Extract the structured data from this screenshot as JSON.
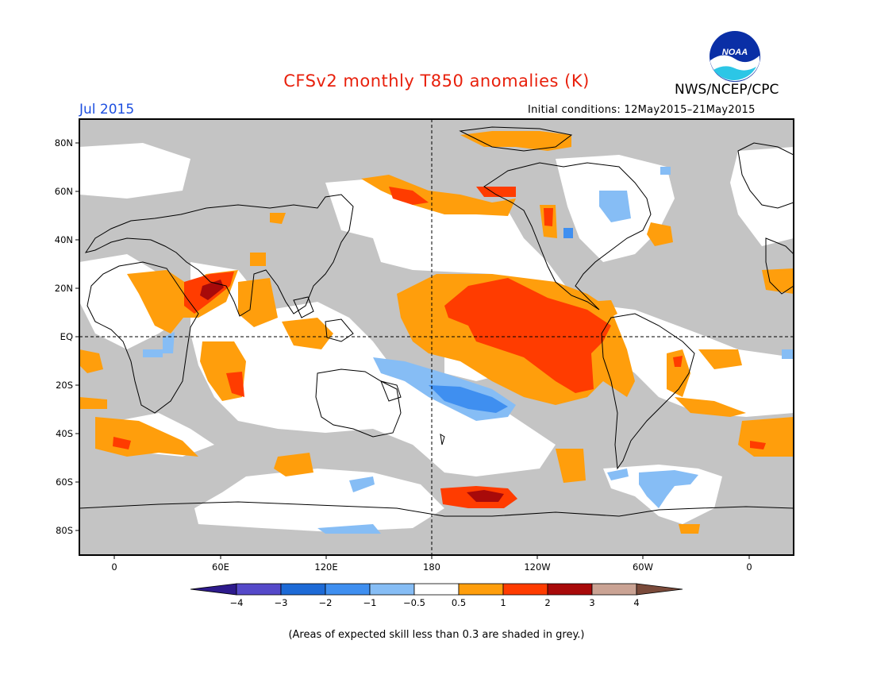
{
  "header": {
    "title": "CFSv2 monthly T850 anomalies (K)",
    "org": "NWS/NCEP/CPC",
    "logo_text": "NOAA",
    "month": "Jul 2015",
    "initial_conditions": "Initial conditions: 12May2015–21May2015"
  },
  "axes": {
    "lat_labels": [
      "80N",
      "60N",
      "40N",
      "20N",
      "EQ",
      "20S",
      "40S",
      "60S",
      "80S"
    ],
    "lon_labels": [
      "0",
      "60E",
      "120E",
      "180",
      "120W",
      "60W",
      "0"
    ]
  },
  "colorbar": {
    "labels": [
      "−4",
      "−3",
      "−2",
      "−1",
      "−0.5",
      "0.5",
      "1",
      "2",
      "3",
      "4"
    ],
    "colors": [
      "#2d1a8c",
      "#5549c9",
      "#1d6ad6",
      "#3f8ff0",
      "#86bdf5",
      "#ffffff",
      "#ff9e0c",
      "#ff3c00",
      "#a80a0a",
      "#caa394",
      "#7a4a3a"
    ]
  },
  "map": {
    "skill_mask_color": "#c4c4c4",
    "ocean_color": "#ffffff"
  },
  "footnote": "(Areas of expected skill less than 0.3 are shaded in grey.)"
}
